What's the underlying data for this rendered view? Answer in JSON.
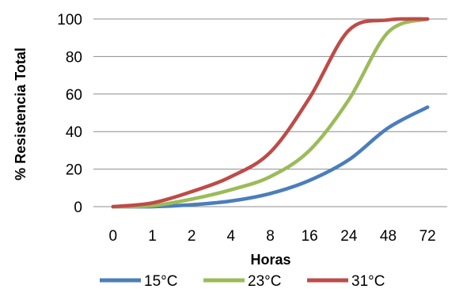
{
  "chart_data": {
    "type": "line",
    "title": "",
    "xlabel": "Horas",
    "ylabel": "% Resistencia Total",
    "categories": [
      "0",
      "1",
      "2",
      "4",
      "8",
      "16",
      "24",
      "48",
      "72"
    ],
    "ylim": [
      0,
      100
    ],
    "yticks": [
      "0",
      "20",
      "40",
      "60",
      "80",
      "100"
    ],
    "grid": "horizontal",
    "legend": "bottom",
    "series": [
      {
        "name": "15°C",
        "color": "#4a7ebb",
        "values": [
          0,
          0,
          1,
          3,
          7,
          14,
          25,
          42,
          53
        ]
      },
      {
        "name": "23°C",
        "color": "#9bbb59",
        "values": [
          0,
          0.5,
          4,
          9,
          16,
          30,
          57,
          93,
          100
        ]
      },
      {
        "name": "31°C",
        "color": "#be4b48",
        "values": [
          0,
          2,
          8,
          16,
          29,
          58,
          94,
          99.5,
          100
        ]
      }
    ]
  }
}
